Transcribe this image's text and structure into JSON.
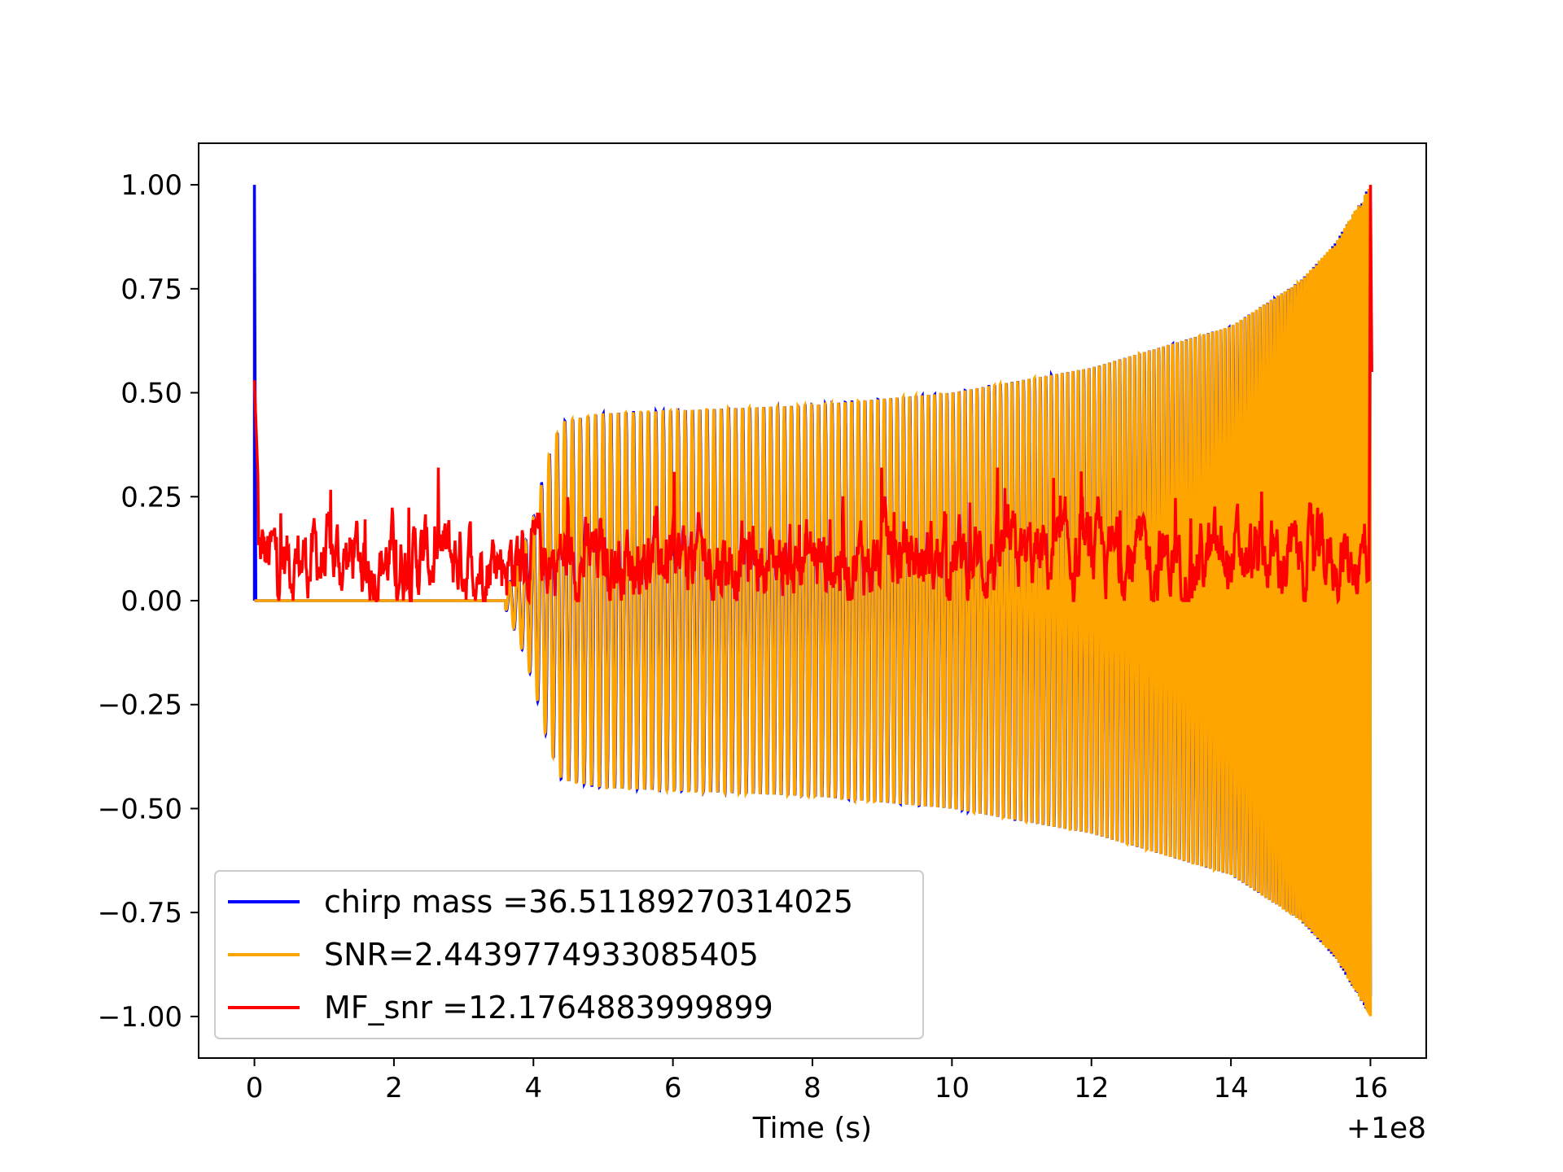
{
  "chart_data": {
    "type": "line",
    "title": "",
    "xlabel": "Time (s)",
    "ylabel": "",
    "x_offset_label": "+1e8",
    "xlim": [
      -0.8,
      16.8
    ],
    "ylim": [
      -1.1,
      1.1
    ],
    "xticks": [
      0,
      2,
      4,
      6,
      8,
      10,
      12,
      14,
      16
    ],
    "xtick_labels": [
      "0",
      "2",
      "4",
      "6",
      "8",
      "10",
      "12",
      "14",
      "16"
    ],
    "yticks": [
      1.0,
      0.75,
      0.5,
      0.25,
      0.0,
      -0.25,
      -0.5,
      -0.75,
      -1.0
    ],
    "ytick_labels": [
      "1.00",
      "0.75",
      "0.50",
      "0.25",
      "0.00",
      "−0.25",
      "−0.50",
      "−0.75",
      "−1.00"
    ],
    "grid": false,
    "legend_position": "lower-left",
    "series": [
      {
        "name": "chirp mass =36.51189270314025",
        "color": "#0000ff",
        "description_points": {
          "spike": {
            "x": 0.0,
            "y": 1.0
          },
          "flat_until": 3.5,
          "envelope": [
            [
              3.6,
              0.02
            ],
            [
              3.8,
              0.1
            ],
            [
              4.0,
              0.2
            ],
            [
              4.2,
              0.34
            ],
            [
              4.4,
              0.43
            ],
            [
              5.0,
              0.45
            ],
            [
              8.0,
              0.47
            ],
            [
              10.0,
              0.5
            ],
            [
              12.0,
              0.56
            ],
            [
              14.0,
              0.66
            ],
            [
              15.0,
              0.77
            ],
            [
              15.5,
              0.86
            ],
            [
              16.0,
              1.0
            ]
          ]
        }
      },
      {
        "name": "SNR=2.4439774933085405",
        "color": "#ffa500",
        "description_points": {
          "flat_until": 3.5,
          "envelope": [
            [
              3.6,
              0.02
            ],
            [
              3.8,
              0.1
            ],
            [
              4.0,
              0.2
            ],
            [
              4.2,
              0.34
            ],
            [
              4.4,
              0.43
            ],
            [
              5.0,
              0.45
            ],
            [
              8.0,
              0.47
            ],
            [
              10.0,
              0.5
            ],
            [
              12.0,
              0.56
            ],
            [
              14.0,
              0.66
            ],
            [
              15.0,
              0.77
            ],
            [
              15.5,
              0.86
            ],
            [
              16.0,
              1.0
            ]
          ]
        }
      },
      {
        "name": "MF_snr =12.1764883999899",
        "color": "#ff0000",
        "description_points": {
          "start": {
            "x": 0.0,
            "y": 0.53
          },
          "peak_end": {
            "x": 16.0,
            "y": 1.0
          },
          "noise_mean": 0.1,
          "noise_range": [
            0.0,
            0.3
          ]
        }
      }
    ]
  }
}
